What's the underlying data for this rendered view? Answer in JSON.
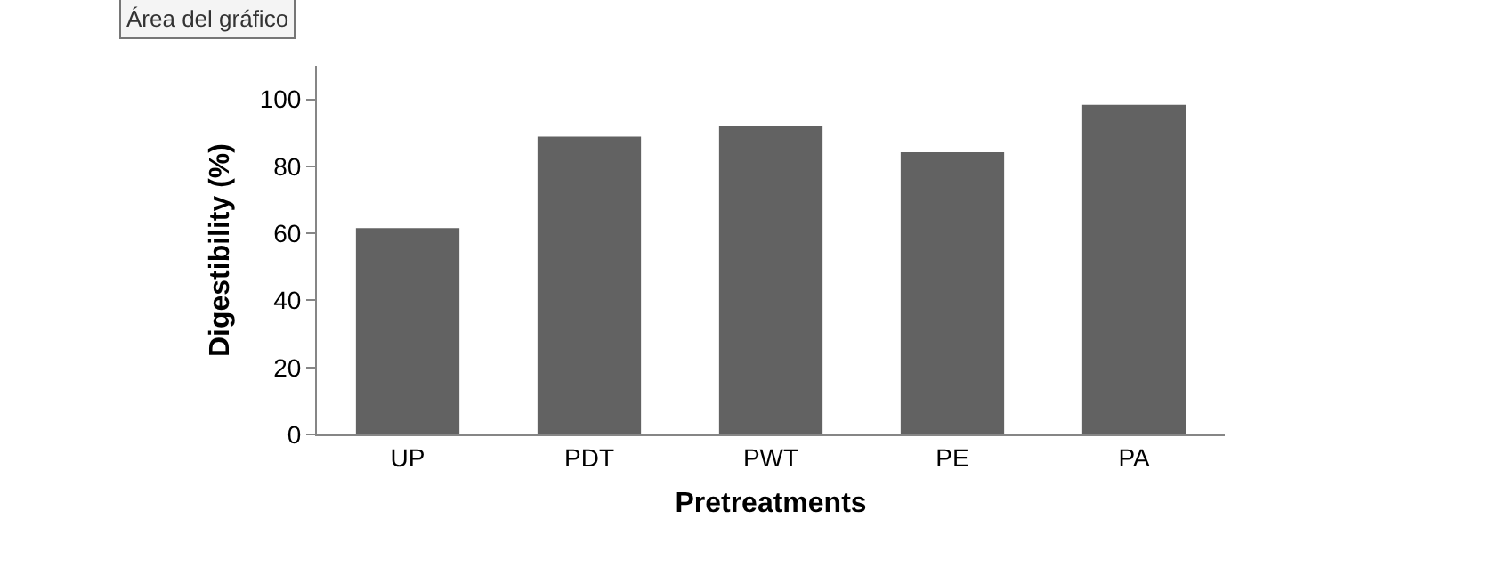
{
  "chart_data": {
    "type": "bar",
    "xlabel": "Pretreatments",
    "ylabel": "Digestibility (%)",
    "categories": [
      "UP",
      "PDT",
      "PWT",
      "PE",
      "PA"
    ],
    "values": [
      61.6,
      88.9,
      92.2,
      84.2,
      98.4
    ],
    "color": "#626262",
    "ylim": [
      0,
      110
    ],
    "yticks": [
      0,
      20,
      40,
      60,
      80,
      100
    ],
    "annotations": [
      "Área del gráfico"
    ]
  }
}
